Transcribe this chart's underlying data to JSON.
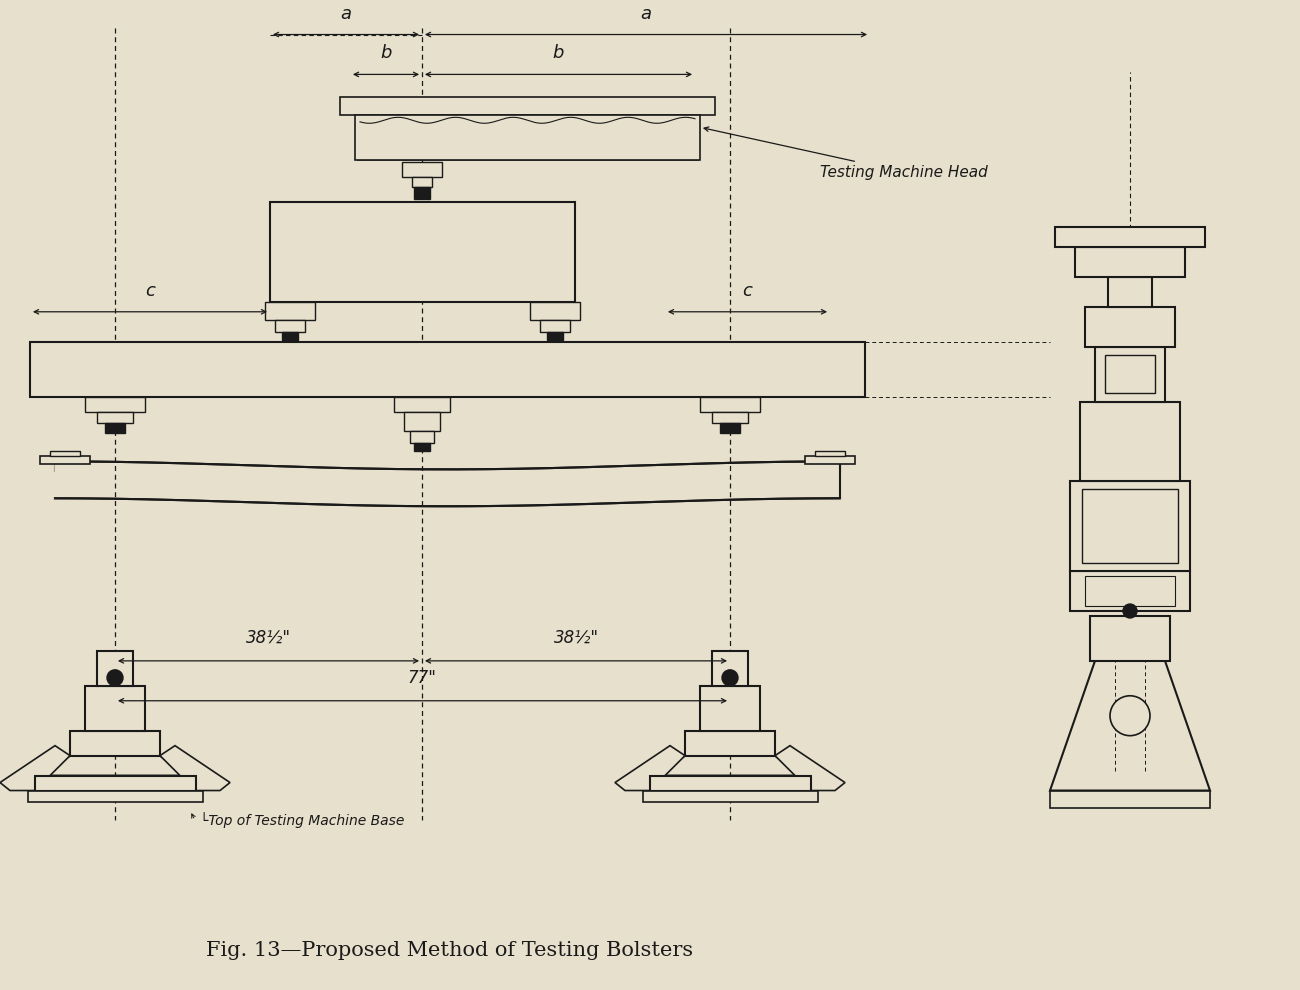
{
  "bg_color": "#e6e0cc",
  "line_color": "#1a1a1a",
  "title": "Fig. 13—Proposed Method of Testing Bolsters",
  "title_fontsize": 15,
  "fig_width": 13.0,
  "fig_height": 9.9,
  "dpi": 100,
  "dim_38half": "38½\"",
  "dim_77": "77\"",
  "label_a": "a",
  "label_b": "b",
  "label_c": "c",
  "testing_machine_head_label": "Testing Machine Head",
  "top_of_base_label": "└Top of Testing Machine Base"
}
